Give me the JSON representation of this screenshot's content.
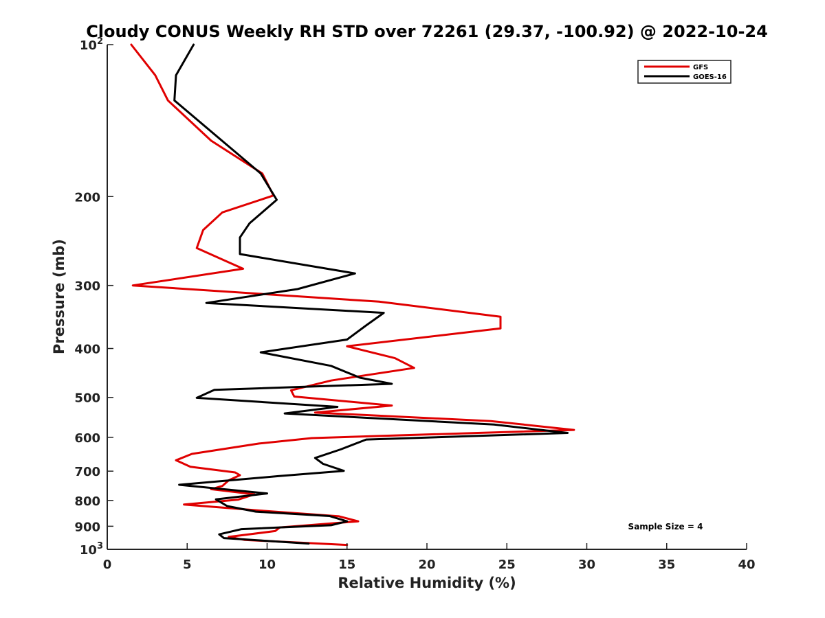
{
  "chart_data": {
    "type": "line",
    "title": "Cloudy CONUS Weekly RH STD over 72261 (29.37, -100.92) @ 2022-10-24",
    "xlabel": "Relative Humidity (%)",
    "ylabel": "Pressure (mb)",
    "xlim": [
      0,
      40
    ],
    "ylim": [
      100,
      1000
    ],
    "y_scale": "log",
    "y_reversed": false,
    "x_ticks": [
      0,
      5,
      10,
      15,
      20,
      25,
      30,
      35,
      40
    ],
    "x_tick_labels": [
      "0",
      "5",
      "10",
      "15",
      "20",
      "25",
      "30",
      "35",
      "40"
    ],
    "y_ticks": [
      200,
      300,
      400,
      500,
      600,
      700,
      800,
      900
    ],
    "y_tick_labels": [
      "200",
      "300",
      "400",
      "500",
      "600",
      "700",
      "800",
      "900"
    ],
    "y_end_labels": [
      {
        "value": 100,
        "base": "10",
        "exp": "2"
      },
      {
        "value": 1000,
        "base": "10",
        "exp": "3"
      }
    ],
    "grid": false,
    "legend_position": "top-right",
    "annotation": "Sample Size = 4",
    "series": [
      {
        "name": "GFS",
        "color": "#e00000",
        "points": [
          [
            1.5,
            100
          ],
          [
            3.0,
            115
          ],
          [
            3.8,
            129
          ],
          [
            6.5,
            155
          ],
          [
            9.7,
            180
          ],
          [
            10.4,
            199
          ],
          [
            7.2,
            215
          ],
          [
            6.0,
            233
          ],
          [
            5.6,
            253
          ],
          [
            8.5,
            278
          ],
          [
            1.6,
            300
          ],
          [
            17.0,
            323
          ],
          [
            24.6,
            346
          ],
          [
            24.6,
            365
          ],
          [
            15.0,
            396
          ],
          [
            18.0,
            418
          ],
          [
            19.2,
            437
          ],
          [
            14.0,
            463
          ],
          [
            11.5,
            484
          ],
          [
            11.7,
            498
          ],
          [
            17.8,
            519
          ],
          [
            13.0,
            536
          ],
          [
            24.0,
            557
          ],
          [
            29.2,
            580
          ],
          [
            12.8,
            602
          ],
          [
            9.5,
            617
          ],
          [
            5.3,
            647
          ],
          [
            4.3,
            666
          ],
          [
            5.2,
            686
          ],
          [
            8.0,
            704
          ],
          [
            8.3,
            713
          ],
          [
            7.6,
            730
          ],
          [
            7.2,
            749
          ],
          [
            6.5,
            760
          ],
          [
            9.2,
            778
          ],
          [
            8.2,
            797
          ],
          [
            4.8,
            815
          ],
          [
            9.6,
            838
          ],
          [
            14.5,
            860
          ],
          [
            15.7,
            880
          ],
          [
            10.8,
            905
          ],
          [
            10.5,
            920
          ],
          [
            7.6,
            945
          ],
          [
            8.6,
            958
          ],
          [
            15.0,
            980
          ]
        ]
      },
      {
        "name": "GOES-16",
        "color": "#000000",
        "points": [
          [
            5.4,
            100
          ],
          [
            4.3,
            115
          ],
          [
            4.2,
            129
          ],
          [
            9.6,
            180
          ],
          [
            10.6,
            203
          ],
          [
            8.9,
            226
          ],
          [
            8.3,
            241
          ],
          [
            8.3,
            260
          ],
          [
            15.5,
            284
          ],
          [
            11.9,
            305
          ],
          [
            6.2,
            325
          ],
          [
            17.3,
            340
          ],
          [
            16.2,
            360
          ],
          [
            15.0,
            384
          ],
          [
            9.6,
            407
          ],
          [
            14.0,
            433
          ],
          [
            15.8,
            457
          ],
          [
            17.8,
            470
          ],
          [
            6.7,
            483
          ],
          [
            5.6,
            501
          ],
          [
            14.4,
            522
          ],
          [
            11.1,
            538
          ],
          [
            24.2,
            566
          ],
          [
            28.8,
            588
          ],
          [
            16.2,
            606
          ],
          [
            14.6,
            634
          ],
          [
            13.0,
            659
          ],
          [
            13.5,
            677
          ],
          [
            14.8,
            699
          ],
          [
            10.7,
            716
          ],
          [
            4.5,
            745
          ],
          [
            10.0,
            775
          ],
          [
            6.8,
            796
          ],
          [
            7.5,
            821
          ],
          [
            9.3,
            842
          ],
          [
            13.9,
            859
          ],
          [
            15.0,
            880
          ],
          [
            14.0,
            896
          ],
          [
            8.4,
            912
          ],
          [
            7.0,
            934
          ],
          [
            7.3,
            950
          ],
          [
            12.6,
            974
          ]
        ]
      }
    ]
  }
}
